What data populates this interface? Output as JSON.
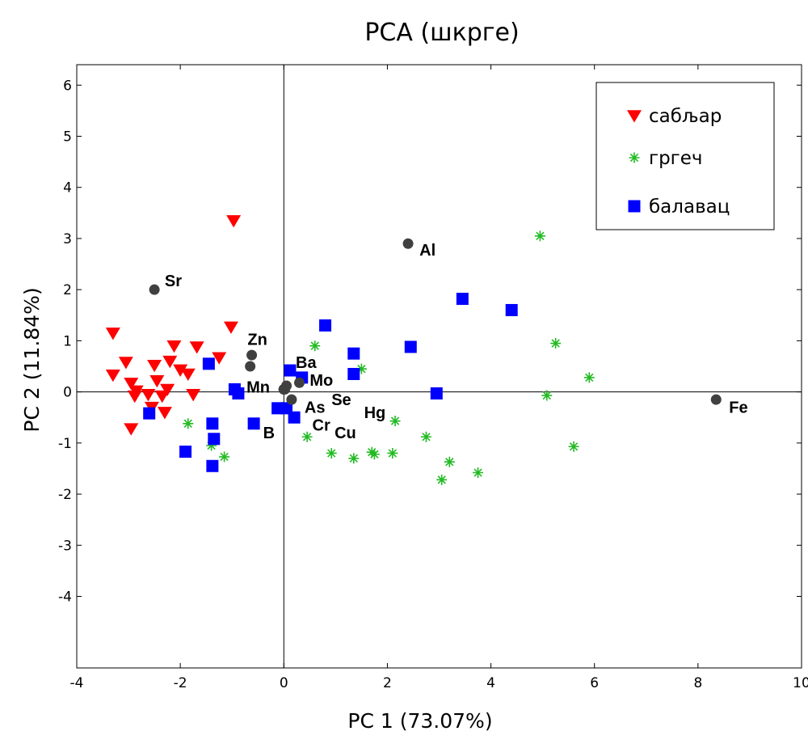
{
  "chart_data": {
    "type": "scatter",
    "title": "PCA (шкрге)",
    "xlabel": "PC 1 (73.07%)",
    "ylabel": "PC 2 (11.84%)",
    "xlim": [
      -4,
      10
    ],
    "ylim": [
      -5.4,
      6.4
    ],
    "xticks": [
      -4,
      -2,
      0,
      2,
      4,
      6,
      8,
      10
    ],
    "yticks": [
      -4,
      -3,
      -2,
      -1,
      0,
      1,
      2,
      3,
      4,
      5,
      6
    ],
    "grid": false,
    "legend_position": "top-right",
    "series": [
      {
        "name": "сабљар",
        "marker": "triangle-down",
        "color": "#ff0000",
        "points": [
          [
            -0.97,
            3.35
          ],
          [
            -1.02,
            1.27
          ],
          [
            -3.3,
            1.15
          ],
          [
            -2.12,
            0.9
          ],
          [
            -1.68,
            0.88
          ],
          [
            -3.05,
            0.58
          ],
          [
            -2.5,
            0.52
          ],
          [
            -2.2,
            0.6
          ],
          [
            -1.25,
            0.67
          ],
          [
            -3.3,
            0.33
          ],
          [
            -2.0,
            0.43
          ],
          [
            -1.85,
            0.35
          ],
          [
            -2.45,
            0.22
          ],
          [
            -2.95,
            0.17
          ],
          [
            -2.85,
            0.02
          ],
          [
            -2.88,
            -0.08
          ],
          [
            -2.62,
            -0.05
          ],
          [
            -2.35,
            -0.08
          ],
          [
            -2.25,
            0.05
          ],
          [
            -1.75,
            -0.05
          ],
          [
            -2.55,
            -0.3
          ],
          [
            -2.3,
            -0.4
          ],
          [
            -2.95,
            -0.72
          ]
        ]
      },
      {
        "name": "гргеч",
        "marker": "star",
        "color": "#22bb22",
        "points": [
          [
            4.95,
            3.05
          ],
          [
            5.25,
            0.95
          ],
          [
            5.9,
            0.28
          ],
          [
            5.08,
            -0.07
          ],
          [
            5.6,
            -1.07
          ],
          [
            0.6,
            0.9
          ],
          [
            1.5,
            0.45
          ],
          [
            2.15,
            -0.57
          ],
          [
            2.75,
            -0.88
          ],
          [
            3.2,
            -1.37
          ],
          [
            3.75,
            -1.58
          ],
          [
            3.05,
            -1.72
          ],
          [
            2.1,
            -1.2
          ],
          [
            1.75,
            -1.22
          ],
          [
            1.7,
            -1.18
          ],
          [
            1.35,
            -1.3
          ],
          [
            0.92,
            -1.2
          ],
          [
            0.45,
            -0.88
          ],
          [
            -1.85,
            -0.62
          ],
          [
            -1.4,
            -1.05
          ],
          [
            -1.15,
            -1.27
          ]
        ]
      },
      {
        "name": "балавац",
        "marker": "square",
        "color": "#0000ff",
        "points": [
          [
            3.45,
            1.82
          ],
          [
            4.4,
            1.6
          ],
          [
            0.8,
            1.3
          ],
          [
            2.45,
            0.88
          ],
          [
            1.35,
            0.75
          ],
          [
            1.35,
            0.35
          ],
          [
            0.12,
            0.42
          ],
          [
            0.35,
            0.28
          ],
          [
            2.95,
            -0.03
          ],
          [
            -1.45,
            0.55
          ],
          [
            -0.95,
            0.05
          ],
          [
            -0.88,
            -0.03
          ],
          [
            -0.12,
            -0.32
          ],
          [
            0.05,
            -0.32
          ],
          [
            0.2,
            -0.5
          ],
          [
            -0.58,
            -0.62
          ],
          [
            -1.38,
            -0.62
          ],
          [
            -1.35,
            -0.92
          ],
          [
            -1.9,
            -1.17
          ],
          [
            -1.38,
            -1.45
          ],
          [
            -2.6,
            -0.42
          ]
        ]
      }
    ],
    "loadings": {
      "name": "variables",
      "marker": "circle",
      "color": "#404040",
      "points": [
        {
          "label": "Sr",
          "x": -2.5,
          "y": 2.0
        },
        {
          "label": "Al",
          "x": 2.4,
          "y": 2.9
        },
        {
          "label": "Fe",
          "x": 8.35,
          "y": -0.15
        },
        {
          "label": "Zn",
          "x": -0.62,
          "y": 0.72
        },
        {
          "label": "Mn",
          "x": -0.65,
          "y": 0.5
        },
        {
          "label": "Ba",
          "x": 0.05,
          "y": 0.12
        },
        {
          "label": "Mo",
          "x": 0.3,
          "y": 0.18
        },
        {
          "label": "As",
          "x": 0.15,
          "y": -0.15
        },
        {
          "label": "Se",
          "x": 0.02,
          "y": 0.05
        },
        {
          "label": "B",
          "x": 0.0,
          "y": 0.0
        },
        {
          "label": "Cr",
          "x": 0.0,
          "y": 0.0
        },
        {
          "label": "Cu",
          "x": 0.0,
          "y": 0.0
        },
        {
          "label": "Hg",
          "x": 0.0,
          "y": 0.0
        }
      ]
    }
  }
}
